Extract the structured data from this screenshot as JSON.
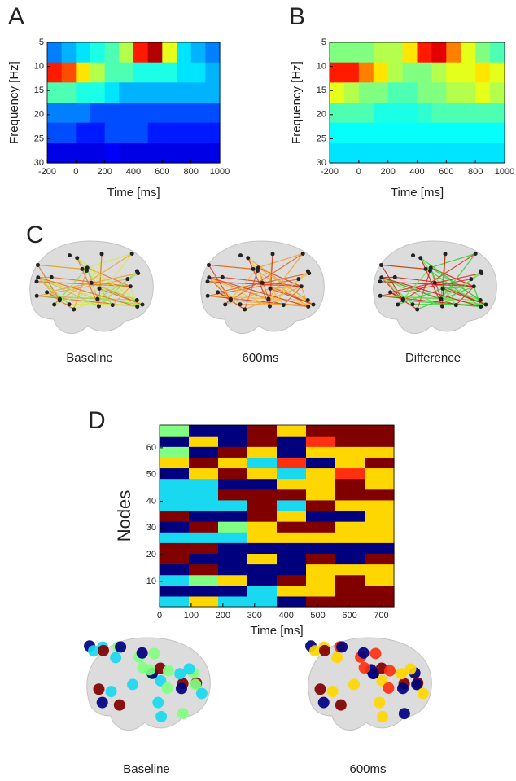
{
  "chart_data": [
    {
      "type": "heatmap",
      "label": "A",
      "xlabel": "Time [ms]",
      "ylabel": "Frequency [Hz]",
      "xlim": [
        -200,
        1000
      ],
      "xticks": [
        -200,
        0,
        200,
        400,
        600,
        800,
        1000
      ],
      "ylim": [
        5,
        30
      ],
      "y_inverted": true,
      "yticks": [
        5,
        10,
        15,
        20,
        25,
        30
      ],
      "colormap": "jet",
      "zlim": [
        0,
        1
      ],
      "z": [
        [
          0.25,
          0.3,
          0.35,
          0.4,
          0.45,
          0.55,
          0.85,
          0.95,
          0.6,
          0.35,
          0.3,
          0.25
        ],
        [
          0.85,
          0.8,
          0.65,
          0.55,
          0.45,
          0.45,
          0.4,
          0.4,
          0.4,
          0.35,
          0.35,
          0.3
        ],
        [
          0.45,
          0.45,
          0.4,
          0.4,
          0.35,
          0.3,
          0.3,
          0.3,
          0.3,
          0.3,
          0.3,
          0.3
        ],
        [
          0.25,
          0.25,
          0.25,
          0.2,
          0.2,
          0.2,
          0.2,
          0.2,
          0.2,
          0.2,
          0.2,
          0.2
        ],
        [
          0.2,
          0.2,
          0.15,
          0.15,
          0.2,
          0.2,
          0.2,
          0.15,
          0.15,
          0.15,
          0.15,
          0.15
        ],
        [
          0.1,
          0.1,
          0.1,
          0.1,
          0.12,
          0.1,
          0.1,
          0.1,
          0.1,
          0.1,
          0.1,
          0.1
        ]
      ]
    },
    {
      "type": "heatmap",
      "label": "B",
      "xlabel": "Time [ms]",
      "ylabel": "Frequency [Hz]",
      "xlim": [
        -200,
        1000
      ],
      "xticks": [
        -200,
        0,
        200,
        400,
        600,
        800,
        1000
      ],
      "ylim": [
        5,
        30
      ],
      "y_inverted": true,
      "yticks": [
        5,
        10,
        15,
        20,
        25,
        30
      ],
      "colormap": "jet",
      "zlim": [
        0,
        1
      ],
      "z": [
        [
          0.5,
          0.5,
          0.5,
          0.55,
          0.55,
          0.65,
          0.85,
          0.9,
          0.75,
          0.6,
          0.5,
          0.45
        ],
        [
          0.85,
          0.85,
          0.75,
          0.65,
          0.55,
          0.5,
          0.5,
          0.55,
          0.6,
          0.6,
          0.65,
          0.6
        ],
        [
          0.6,
          0.55,
          0.5,
          0.5,
          0.45,
          0.45,
          0.5,
          0.5,
          0.55,
          0.55,
          0.6,
          0.55
        ],
        [
          0.45,
          0.45,
          0.45,
          0.4,
          0.4,
          0.4,
          0.42,
          0.45,
          0.45,
          0.45,
          0.45,
          0.45
        ],
        [
          0.38,
          0.38,
          0.38,
          0.38,
          0.38,
          0.38,
          0.38,
          0.38,
          0.38,
          0.38,
          0.38,
          0.38
        ],
        [
          0.35,
          0.35,
          0.35,
          0.35,
          0.35,
          0.35,
          0.35,
          0.35,
          0.35,
          0.35,
          0.35,
          0.35
        ]
      ]
    },
    {
      "type": "brain-network",
      "label": "C",
      "captions": [
        "Baseline",
        "600ms",
        "Difference"
      ]
    },
    {
      "type": "heatmap",
      "label": "D",
      "xlabel": "Time [ms]",
      "ylabel": "Nodes",
      "xlim": [
        0,
        740
      ],
      "xticks": [
        0,
        100,
        200,
        300,
        400,
        500,
        600,
        700
      ],
      "ylim": [
        0.5,
        68.5
      ],
      "yticks": [
        10,
        20,
        30,
        40,
        50,
        60
      ],
      "colormap": "categorical",
      "palette": [
        "#00007f",
        "#19d9f0",
        "#80ff80",
        "#ffd700",
        "#ff3010",
        "#800000"
      ],
      "z": [
        [
          1,
          3,
          1,
          1,
          0,
          5,
          5,
          5
        ],
        [
          0,
          0,
          0,
          1,
          3,
          3,
          5,
          5
        ],
        [
          1,
          2,
          3,
          0,
          5,
          3,
          5,
          3
        ],
        [
          0,
          5,
          0,
          0,
          0,
          3,
          3,
          3
        ],
        [
          5,
          0,
          0,
          3,
          0,
          5,
          0,
          5
        ],
        [
          5,
          5,
          0,
          0,
          0,
          0,
          0,
          0
        ],
        [
          1,
          1,
          1,
          3,
          3,
          3,
          3,
          3
        ],
        [
          0,
          5,
          2,
          3,
          5,
          5,
          3,
          3
        ],
        [
          5,
          0,
          0,
          5,
          3,
          0,
          0,
          3
        ],
        [
          1,
          1,
          1,
          5,
          1,
          5,
          3,
          3
        ],
        [
          1,
          1,
          5,
          5,
          5,
          3,
          5,
          5
        ],
        [
          1,
          1,
          0,
          0,
          3,
          3,
          5,
          3
        ],
        [
          0,
          3,
          5,
          3,
          1,
          3,
          4,
          3
        ],
        [
          3,
          5,
          3,
          1,
          4,
          0,
          3,
          5
        ],
        [
          2,
          0,
          5,
          3,
          0,
          3,
          3,
          3
        ],
        [
          0,
          3,
          0,
          5,
          0,
          4,
          5,
          5
        ],
        [
          2,
          0,
          0,
          5,
          3,
          5,
          5,
          5
        ]
      ]
    },
    {
      "type": "brain-nodes",
      "captions": [
        "Baseline",
        "600ms"
      ]
    }
  ]
}
